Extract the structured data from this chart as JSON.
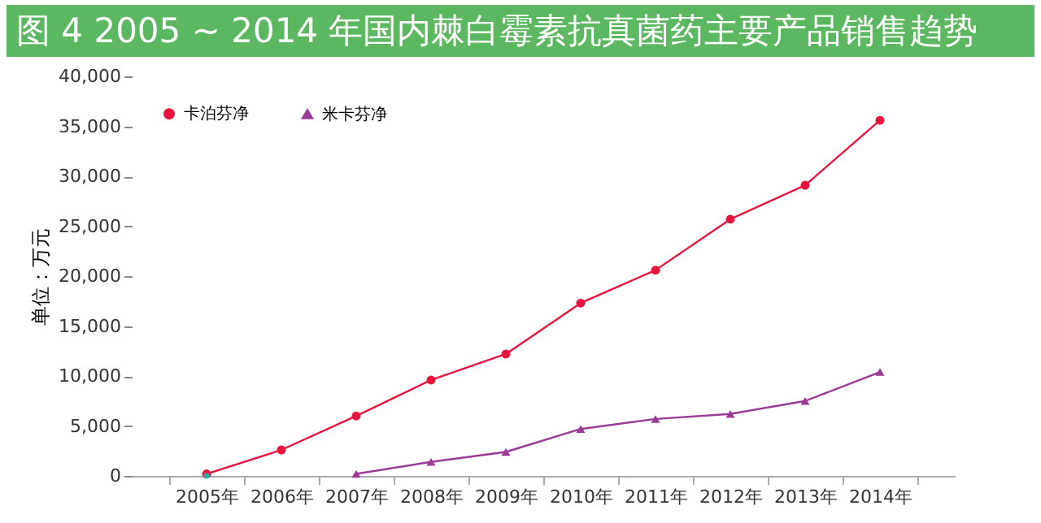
{
  "chart_data": {
    "type": "line",
    "title": "图 4  2005 ~ 2014 年国内棘白霉素抗真菌药主要产品销售趋势",
    "ylabel": "单位：万元",
    "categories": [
      "2005年",
      "2006年",
      "2007年",
      "2008年",
      "2009年",
      "2010年",
      "2011年",
      "2012年",
      "2013年",
      "2014年"
    ],
    "series": [
      {
        "name": "卡泊芬净",
        "color": "#e8143c",
        "marker": "circle",
        "values": [
          200,
          2600,
          6000,
          9600,
          12200,
          17300,
          20600,
          25700,
          29100,
          35600
        ]
      },
      {
        "name": "米卡芬净",
        "color": "#9b3a96",
        "marker": "triangle",
        "values": [
          null,
          null,
          200,
          1400,
          2400,
          4700,
          5700,
          6200,
          7500,
          10400
        ]
      },
      {
        "type": "scatter",
        "color": "#20b0a8",
        "marker": "circle",
        "values": [
          0,
          null,
          null,
          null,
          null,
          null,
          null,
          null,
          null,
          null
        ]
      }
    ],
    "ylim": [
      0,
      40000
    ],
    "yticks": [
      0,
      {
        "value": 5000,
        "label": "5,000"
      },
      {
        "value": 10000,
        "label": "10,000"
      },
      {
        "value": 15000,
        "label": "15,000"
      },
      {
        "value": 20000,
        "label": "20,000"
      },
      {
        "value": 25000,
        "label": "25,000"
      },
      {
        "value": 30000,
        "label": "30,000"
      },
      {
        "value": 35000,
        "label": "35,000"
      },
      {
        "value": 40000,
        "label": "40,000"
      }
    ],
    "grid": false,
    "legend": "top left"
  }
}
